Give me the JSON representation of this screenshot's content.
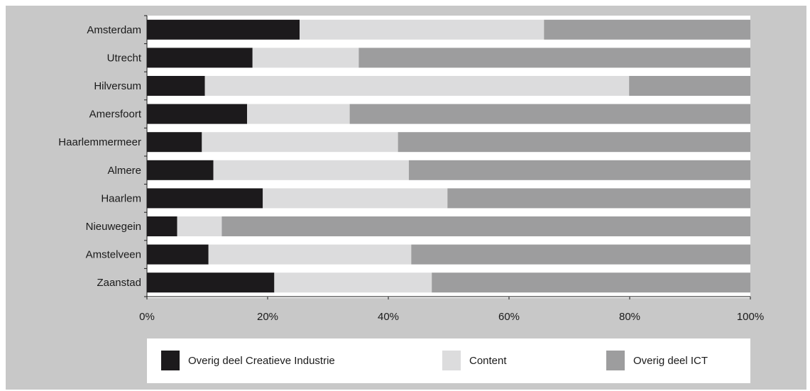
{
  "chart_data": {
    "type": "bar",
    "orientation": "horizontal",
    "stacked": true,
    "categories": [
      "Amsterdam",
      "Utrecht",
      "Hilversum",
      "Amersfoort",
      "Haarlemmermeer",
      "Almere",
      "Haarlem",
      "Nieuwegein",
      "Amstelveen",
      "Zaanstad"
    ],
    "series": [
      {
        "name": "Overig deel Creatieve Industrie",
        "color": "#1c1a1c",
        "values": [
          25.3,
          17.5,
          9.6,
          16.6,
          9.1,
          11.0,
          19.2,
          5.0,
          10.2,
          21.1
        ]
      },
      {
        "name": "Content",
        "color": "#dcdcdd",
        "values": [
          40.5,
          17.6,
          70.3,
          17.0,
          32.5,
          32.4,
          30.6,
          7.4,
          33.6,
          26.1
        ]
      },
      {
        "name": "Overig deel ICT",
        "color": "#9d9d9e",
        "values": [
          34.2,
          64.9,
          20.1,
          66.4,
          58.4,
          56.6,
          50.2,
          87.6,
          56.2,
          52.8
        ]
      }
    ],
    "xlim": [
      0,
      100
    ],
    "xticks": [
      "0%",
      "20%",
      "40%",
      "60%",
      "80%",
      "100%"
    ],
    "title": "",
    "xlabel": "",
    "ylabel": "",
    "grid": false,
    "legend_position": "bottom"
  }
}
